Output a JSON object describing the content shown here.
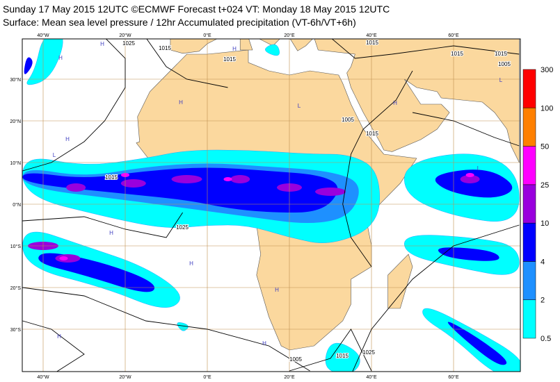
{
  "header": {
    "title": "Sunday 17 May 2015 12UTC ©ECMWF Forecast t+024 VT: Monday 18 May 2015 12UTC",
    "subtitle": "Surface: Mean sea level pressure / 12hr Accumulated precipitation (VT-6h/VT+6h)"
  },
  "map": {
    "lon_labels": [
      "40°W",
      "20°W",
      "0°E",
      "20°E",
      "40°E",
      "60°E"
    ],
    "lat_labels": [
      "30°N",
      "20°N",
      "10°N",
      "0°N",
      "10°S",
      "20°S",
      "30°S"
    ],
    "isobar_labels": [
      "1025",
      "1015",
      "1015",
      "1015",
      "1015",
      "1015",
      "1005",
      "1005",
      "1015",
      "1015",
      "1025",
      "1005",
      "1015",
      "1025"
    ],
    "pressure_centers": [
      "H",
      "H",
      "H",
      "H",
      "H",
      "H",
      "H",
      "H",
      "H",
      "H",
      "H",
      "L",
      "L",
      "L",
      "L"
    ]
  },
  "legend": {
    "levels": [
      0.5,
      2,
      4,
      10,
      25,
      50,
      100,
      300
    ],
    "colors": [
      "#00ffff",
      "#1e90ff",
      "#0000ff",
      "#9900dd",
      "#ff00ff",
      "#ff8000",
      "#ff0000"
    ]
  }
}
